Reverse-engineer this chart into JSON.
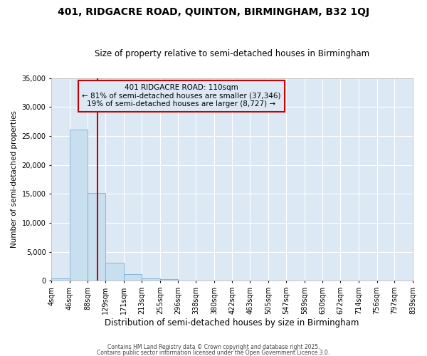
{
  "title1": "401, RIDGACRE ROAD, QUINTON, BIRMINGHAM, B32 1QJ",
  "title2": "Size of property relative to semi-detached houses in Birmingham",
  "xlabel": "Distribution of semi-detached houses by size in Birmingham",
  "ylabel": "Number of semi-detached properties",
  "bin_edges": [
    4,
    46,
    88,
    129,
    171,
    213,
    255,
    296,
    338,
    380,
    422,
    463,
    505,
    547,
    589,
    630,
    672,
    714,
    756,
    797,
    839
  ],
  "bar_heights": [
    400,
    26100,
    15100,
    3100,
    1100,
    450,
    250,
    0,
    0,
    0,
    0,
    0,
    0,
    0,
    0,
    0,
    0,
    0,
    0,
    0
  ],
  "bar_color": "#c8dff0",
  "bar_edge_color": "#7bafd4",
  "property_size": 110,
  "annotation_line1": "401 RIDGACRE ROAD: 110sqm",
  "annotation_line2": "← 81% of semi-detached houses are smaller (37,346)",
  "annotation_line3": "19% of semi-detached houses are larger (8,727) →",
  "red_line_color": "#cc0000",
  "annotation_box_edgecolor": "#cc0000",
  "plot_bg_color": "#dce9f5",
  "fig_bg_color": "#ffffff",
  "grid_color": "#ffffff",
  "ylim": [
    0,
    35000
  ],
  "yticks": [
    0,
    5000,
    10000,
    15000,
    20000,
    25000,
    30000,
    35000
  ],
  "footer1": "Contains HM Land Registry data © Crown copyright and database right 2025.",
  "footer2": "Contains public sector information licensed under the Open Government Licence 3.0."
}
